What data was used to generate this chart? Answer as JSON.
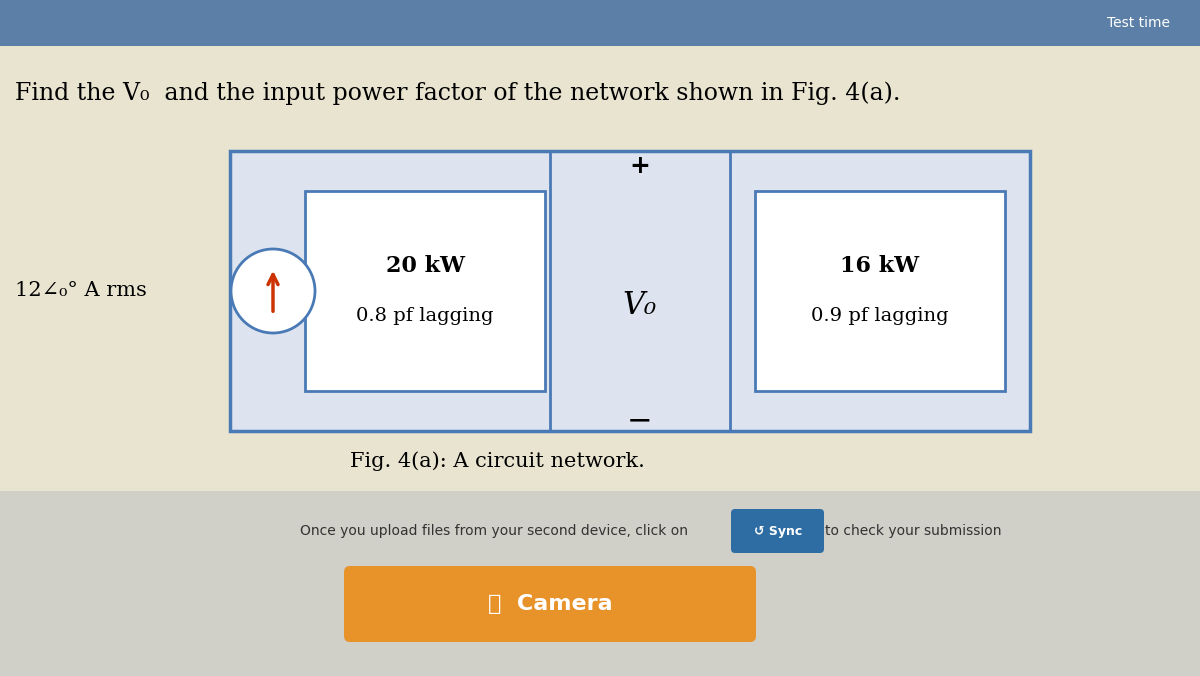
{
  "bg_top_color": "#5b7fa6",
  "bg_main_color": "#e8e4d0",
  "bg_bottom_color": "#d0cfc8",
  "title_text": "Find the V₀  and the input power factor of the network shown in Fig. 4(a).",
  "title_fontsize": 17,
  "test_time_label": "Test time",
  "source_label": "12∠₀° A rms",
  "load1_line1": "20 kW",
  "load1_line2": "0.8 pf lagging",
  "load2_line1": "16 kW",
  "load2_line2": "0.9 pf lagging",
  "vo_label": "V₀",
  "plus_label": "+",
  "minus_label": "−",
  "caption": "Fig. 4(a): A circuit network.",
  "caption_fontsize": 15,
  "sync_text": "↺ Sync",
  "sync_btn_color": "#2e6da4",
  "sync_instruction": "Once you upload files from your second device, click on",
  "sync_after": "to check your submission",
  "camera_btn_color": "#e8922a",
  "camera_text": "📷  Camera",
  "outer_box_color": "#4a7ab5",
  "inner_box_color": "#4a7ab5",
  "load_box_color": "#4a7ab5",
  "circuit_bg": "#dde4ef"
}
